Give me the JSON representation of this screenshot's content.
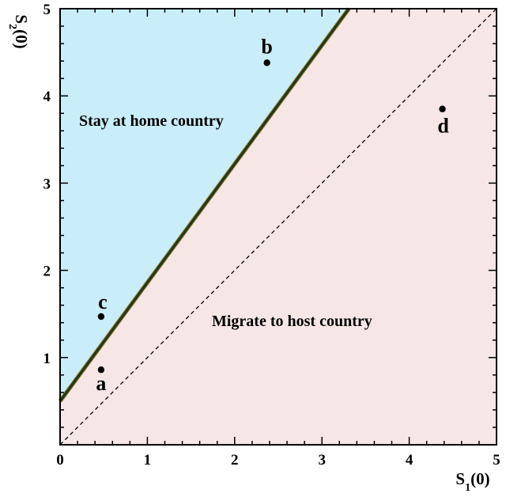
{
  "chart_data": {
    "type": "scatter",
    "xlabel": "S1(0)",
    "ylabel": "S2(0)",
    "xlim": [
      0,
      5
    ],
    "ylim": [
      0,
      5
    ],
    "xticks": [
      0,
      1,
      2,
      3,
      4,
      5
    ],
    "yticks": [
      1,
      2,
      3,
      4,
      5
    ],
    "boundary_line": {
      "intercept": 0.5,
      "slope": 1.36
    },
    "diagonal_line": {
      "intercept": 0,
      "slope": 1,
      "style": "dashed"
    },
    "regions": [
      {
        "label": "Stay at home country",
        "color": "#c9eef9",
        "side": "above-boundary"
      },
      {
        "label": "Migrate to host country",
        "color": "#f6e7e6",
        "side": "below-boundary"
      }
    ],
    "points": [
      {
        "label": "a",
        "x": 0.47,
        "y": 0.86
      },
      {
        "label": "b",
        "x": 2.37,
        "y": 4.38
      },
      {
        "label": "c",
        "x": 0.47,
        "y": 1.47
      },
      {
        "label": "d",
        "x": 4.38,
        "y": 3.85
      }
    ],
    "colors": {
      "boundary": "#1f3a1f",
      "boundary_edge": "#b58a3a",
      "points": "#000000"
    }
  }
}
